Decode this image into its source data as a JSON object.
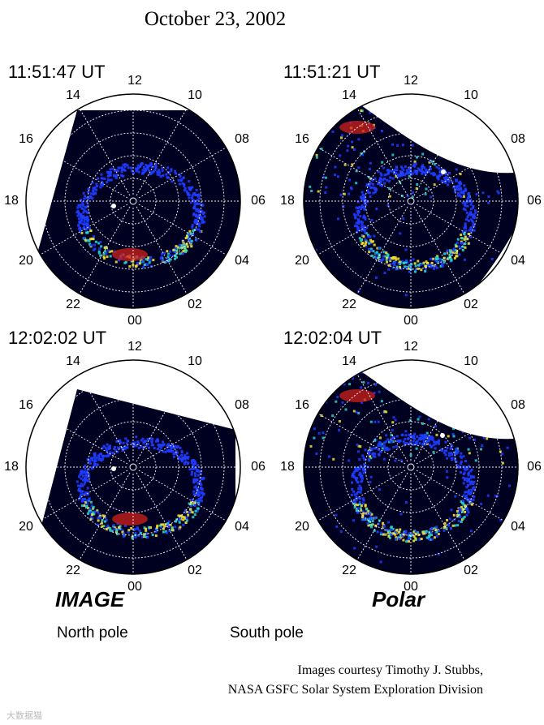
{
  "title": "October 23, 2002",
  "panels": [
    {
      "id": "p1",
      "timestamp": "11:51:47 UT",
      "instrument": "IMAGE",
      "hemisphere": "North pole"
    },
    {
      "id": "p2",
      "timestamp": "11:51:21 UT",
      "instrument": "Polar",
      "hemisphere": "South pole"
    },
    {
      "id": "p3",
      "timestamp": "12:02:02 UT",
      "instrument": "IMAGE",
      "hemisphere": "North pole"
    },
    {
      "id": "p4",
      "timestamp": "12:02:04 UT",
      "instrument": "Polar",
      "hemisphere": "South pole"
    }
  ],
  "hour_labels": [
    "12",
    "10",
    "08",
    "06",
    "04",
    "02",
    "00",
    "22",
    "20",
    "18",
    "16",
    "14"
  ],
  "labels": {
    "image": "IMAGE",
    "polar": "Polar",
    "north": "North pole",
    "south": "South pole"
  },
  "credit": {
    "line1": "Images courtesy Timothy J. Stubbs,",
    "line2": "NASA GSFC Solar System Exploration Division"
  },
  "watermark": "大数据猫",
  "colors": {
    "background": "#000020",
    "aurora_low": "#1f3cff",
    "aurora_mid": "#27d3c6",
    "aurora_high": "#f0e030",
    "aurora_peak": "#d0201a",
    "grid": "#ffffff"
  }
}
